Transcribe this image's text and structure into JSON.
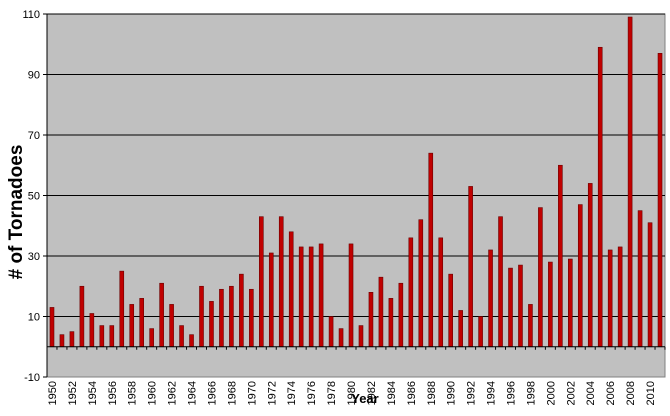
{
  "chart_data": {
    "type": "bar",
    "title": "",
    "xlabel": "Year",
    "ylabel": "# of Tornadoes",
    "ylim": [
      -10,
      110
    ],
    "yticks": [
      -10,
      10,
      30,
      50,
      70,
      90,
      110
    ],
    "grid": true,
    "legend": "none",
    "categories": [
      "1950",
      "1951",
      "1952",
      "1953",
      "1954",
      "1955",
      "1956",
      "1957",
      "1958",
      "1959",
      "1960",
      "1961",
      "1962",
      "1963",
      "1964",
      "1965",
      "1966",
      "1967",
      "1968",
      "1969",
      "1970",
      "1971",
      "1972",
      "1973",
      "1974",
      "1975",
      "1976",
      "1977",
      "1978",
      "1979",
      "1980",
      "1981",
      "1982",
      "1983",
      "1984",
      "1985",
      "1986",
      "1987",
      "1988",
      "1989",
      "1990",
      "1991",
      "1992",
      "1993",
      "1994",
      "1995",
      "1996",
      "1997",
      "1998",
      "1999",
      "2000",
      "2001",
      "2002",
      "2003",
      "2004",
      "2005",
      "2006",
      "2007",
      "2008",
      "2009",
      "2010",
      "2011"
    ],
    "x_tick_labels": [
      "1950",
      "1952",
      "1954",
      "1956",
      "1958",
      "1960",
      "1962",
      "1964",
      "1966",
      "1968",
      "1970",
      "1972",
      "1974",
      "1976",
      "1978",
      "1980",
      "1982",
      "1984",
      "1986",
      "1988",
      "1990",
      "1992",
      "1994",
      "1996",
      "1998",
      "2000",
      "2002",
      "2004",
      "2006",
      "2008",
      "2010"
    ],
    "values": [
      13,
      4,
      5,
      20,
      11,
      7,
      7,
      25,
      14,
      16,
      6,
      21,
      14,
      7,
      4,
      20,
      15,
      19,
      20,
      24,
      19,
      43,
      31,
      43,
      38,
      33,
      33,
      34,
      10,
      6,
      34,
      7,
      18,
      23,
      16,
      21,
      36,
      42,
      64,
      36,
      24,
      12,
      53,
      10,
      32,
      43,
      26,
      27,
      14,
      46,
      28,
      60,
      29,
      47,
      54,
      99,
      32,
      33,
      109,
      45,
      41,
      97
    ],
    "colors": {
      "bar_fill": "#c00000",
      "bar_stroke": "#6b0000",
      "plot_background": "#c0c0c0",
      "gridline": "#000000"
    }
  }
}
